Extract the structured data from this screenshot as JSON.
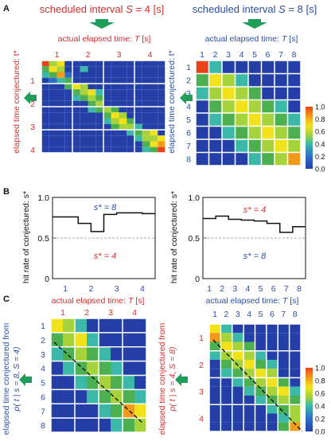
{
  "colors": {
    "red": "#d03030",
    "blue": "#2a4fa0",
    "arrow": "#1e9e5a",
    "cell_dark": "#2440a8",
    "cell_mid": "#2f6ec8",
    "cell_lightblue": "#3fa8c8",
    "cell_cyan": "#3cb8a8",
    "cell_green": "#4caf50",
    "cell_lime": "#a6d23c",
    "cell_yellow": "#f2e21c",
    "cell_orange": "#f29a1c",
    "cell_red": "#e8441c"
  },
  "panelA": {
    "label": "A",
    "left": {
      "title_prefix": "scheduled interval ",
      "title_var": "S",
      "title_suffix": " = 4 [s]",
      "xaxis_title": "actual elapsed time: ",
      "xaxis_var": "T",
      "xaxis_unit": " [s]",
      "ylabel": "elapsed time conjectured: t*",
      "ticks": [
        "1",
        "2",
        "3",
        "4"
      ]
    },
    "right": {
      "title_prefix": "scheduled interval ",
      "title_var": "S",
      "title_suffix": " = 8 [s]",
      "xaxis_title": "actual elapsed time: ",
      "xaxis_var": "T",
      "xaxis_unit": " [s]",
      "ylabel": "elapsed time conjectured: t*",
      "ticks": [
        "1",
        "2",
        "3",
        "4",
        "5",
        "6",
        "7",
        "8"
      ],
      "colorbar_ticks": [
        "1.0",
        "0.8",
        "0.6",
        "0.4",
        "0.2",
        "0.0"
      ]
    }
  },
  "panelB": {
    "label": "B",
    "left": {
      "ylabel": "hit rate of conjectured: s*",
      "yticks": [
        "1.0",
        "0.5",
        "0"
      ],
      "xticks": [
        "1",
        "2",
        "3",
        "4"
      ],
      "upper_label": "s* = 8",
      "lower_label": "s* = 4",
      "step_values": [
        0.76,
        0.76,
        0.68,
        0.58,
        0.79,
        0.81,
        0.81,
        0.8
      ]
    },
    "right": {
      "ylabel": "hit rate of conjectured: s*",
      "yticks": [
        "1.0",
        "0.5",
        "0"
      ],
      "xticks": [
        "1",
        "2",
        "3",
        "4",
        "5",
        "6",
        "7",
        "8"
      ],
      "upper_label": "s* = 4",
      "lower_label": "s* = 8",
      "step_values": [
        0.74,
        0.77,
        0.73,
        0.72,
        0.71,
        0.68,
        0.57,
        0.64
      ]
    }
  },
  "panelC": {
    "label": "C",
    "left": {
      "xaxis_title": "actual elapsed time: ",
      "xaxis_var": "T",
      "xaxis_unit": " [s]",
      "ylabel_line1": "elapsed time conjectured from",
      "ylabel_line2": "p( t | s = 8, S = 4)",
      "xticks": [
        "1",
        "2",
        "3",
        "4"
      ],
      "yticks": [
        "1",
        "2",
        "3",
        "4",
        "5",
        "6",
        "7",
        "8"
      ]
    },
    "right": {
      "xaxis_title": "actual elapsed time: ",
      "xaxis_var": "T",
      "xaxis_unit": " [s]",
      "ylabel_line1": "elapsed time conjectured from",
      "ylabel_line2": "p( t | s = 4, S = 8)",
      "xticks": [
        "1",
        "2",
        "3",
        "4",
        "5",
        "6",
        "7",
        "8"
      ],
      "yticks": [
        "1",
        "2",
        "3",
        "4"
      ],
      "colorbar_ticks": [
        "1.0",
        "0.8",
        "0.6",
        "0.4",
        "0.2",
        "0.0"
      ]
    }
  },
  "grids": {
    "A_left": [
      [
        "r",
        "l",
        "y",
        "d",
        "d",
        "d",
        "d",
        "d",
        "d",
        "d",
        "d",
        "d",
        "d",
        "d",
        "d",
        "d"
      ],
      [
        "g",
        "y",
        "l",
        "d",
        "d",
        "c",
        "d",
        "d",
        "d",
        "d",
        "d",
        "d",
        "d",
        "d",
        "d",
        "d"
      ],
      [
        "c",
        "g",
        "o",
        "b",
        "d",
        "d",
        "d",
        "d",
        "d",
        "d",
        "d",
        "d",
        "d",
        "d",
        "d",
        "d"
      ],
      [
        "d",
        "b",
        "c",
        "g",
        "d",
        "d",
        "d",
        "d",
        "d",
        "d",
        "d",
        "d",
        "d",
        "d",
        "d",
        "d"
      ],
      [
        "d",
        "d",
        "d",
        "g",
        "y",
        "l",
        "d",
        "d",
        "d",
        "d",
        "d",
        "d",
        "d",
        "d",
        "d",
        "d"
      ],
      [
        "d",
        "d",
        "d",
        "d",
        "g",
        "l",
        "y",
        "c",
        "d",
        "d",
        "d",
        "d",
        "d",
        "d",
        "d",
        "d"
      ],
      [
        "d",
        "d",
        "d",
        "d",
        "c",
        "g",
        "l",
        "g",
        "d",
        "d",
        "d",
        "d",
        "d",
        "d",
        "d",
        "d"
      ],
      [
        "d",
        "d",
        "d",
        "d",
        "d",
        "d",
        "g",
        "l",
        "d",
        "d",
        "d",
        "d",
        "d",
        "d",
        "d",
        "d"
      ],
      [
        "d",
        "d",
        "d",
        "d",
        "d",
        "d",
        "c",
        "g",
        "l",
        "g",
        "d",
        "d",
        "d",
        "d",
        "d",
        "d"
      ],
      [
        "d",
        "d",
        "d",
        "d",
        "d",
        "d",
        "d",
        "d",
        "g",
        "y",
        "l",
        "d",
        "d",
        "d",
        "d",
        "d"
      ],
      [
        "d",
        "d",
        "d",
        "d",
        "d",
        "d",
        "d",
        "d",
        "c",
        "l",
        "y",
        "g",
        "d",
        "d",
        "d",
        "d"
      ],
      [
        "d",
        "d",
        "d",
        "d",
        "d",
        "d",
        "d",
        "d",
        "d",
        "g",
        "l",
        "l",
        "c",
        "d",
        "d",
        "d"
      ],
      [
        "d",
        "d",
        "d",
        "d",
        "d",
        "d",
        "d",
        "d",
        "d",
        "d",
        "d",
        "c",
        "g",
        "l",
        "y",
        "d"
      ],
      [
        "d",
        "d",
        "d",
        "d",
        "d",
        "d",
        "d",
        "d",
        "d",
        "d",
        "d",
        "d",
        "c",
        "l",
        "l",
        "y"
      ],
      [
        "d",
        "d",
        "d",
        "d",
        "d",
        "d",
        "d",
        "d",
        "d",
        "d",
        "d",
        "d",
        "d",
        "g",
        "y",
        "o"
      ],
      [
        "d",
        "d",
        "d",
        "d",
        "d",
        "d",
        "d",
        "d",
        "d",
        "d",
        "d",
        "d",
        "d",
        "c",
        "g",
        "r"
      ]
    ],
    "A_right": [
      [
        "r",
        "c",
        "d",
        "d",
        "d",
        "d",
        "d",
        "d"
      ],
      [
        "g",
        "y",
        "l",
        "c",
        "d",
        "d",
        "d",
        "d"
      ],
      [
        "c",
        "l",
        "y",
        "l",
        "g",
        "d",
        "d",
        "d"
      ],
      [
        "d",
        "g",
        "l",
        "y",
        "l",
        "g",
        "c",
        "d"
      ],
      [
        "d",
        "c",
        "g",
        "l",
        "y",
        "l",
        "g",
        "c"
      ],
      [
        "d",
        "d",
        "c",
        "g",
        "l",
        "y",
        "l",
        "g"
      ],
      [
        "d",
        "d",
        "d",
        "c",
        "g",
        "l",
        "y",
        "l"
      ],
      [
        "d",
        "d",
        "d",
        "d",
        "c",
        "g",
        "l",
        "o"
      ]
    ],
    "C_left": [
      [
        "y",
        "l",
        "c",
        "d",
        "d",
        "d",
        "d",
        "d"
      ],
      [
        "g",
        "l",
        "y",
        "c",
        "d",
        "d",
        "d",
        "d"
      ],
      [
        "c",
        "g",
        "l",
        "g",
        "c",
        "d",
        "d",
        "d"
      ],
      [
        "d",
        "c",
        "g",
        "l",
        "g",
        "c",
        "d",
        "d"
      ],
      [
        "d",
        "d",
        "c",
        "g",
        "l",
        "g",
        "c",
        "d"
      ],
      [
        "d",
        "d",
        "d",
        "c",
        "g",
        "l",
        "g",
        "c"
      ],
      [
        "d",
        "d",
        "d",
        "d",
        "c",
        "g",
        "o",
        "y"
      ],
      [
        "d",
        "d",
        "d",
        "d",
        "d",
        "c",
        "g",
        "l"
      ]
    ],
    "C_right": [
      [
        "y",
        "c",
        "d",
        "d",
        "d",
        "d",
        "d",
        "d"
      ],
      [
        "o",
        "l",
        "c",
        "d",
        "d",
        "d",
        "d",
        "d"
      ],
      [
        "g",
        "y",
        "l",
        "g",
        "d",
        "d",
        "d",
        "d"
      ],
      [
        "c",
        "l",
        "y",
        "l",
        "c",
        "d",
        "d",
        "d"
      ],
      [
        "d",
        "g",
        "l",
        "y",
        "g",
        "c",
        "d",
        "d"
      ],
      [
        "d",
        "c",
        "g",
        "l",
        "y",
        "l",
        "d",
        "d"
      ],
      [
        "d",
        "d",
        "c",
        "g",
        "l",
        "y",
        "g",
        "d"
      ],
      [
        "d",
        "d",
        "d",
        "c",
        "g",
        "l",
        "y",
        "c"
      ],
      [
        "d",
        "d",
        "d",
        "d",
        "c",
        "g",
        "l",
        "g"
      ],
      [
        "d",
        "d",
        "d",
        "d",
        "d",
        "c",
        "g",
        "l"
      ],
      [
        "d",
        "d",
        "d",
        "d",
        "d",
        "d",
        "c",
        "l"
      ],
      [
        "d",
        "d",
        "d",
        "d",
        "d",
        "d",
        "g",
        "o"
      ]
    ]
  }
}
